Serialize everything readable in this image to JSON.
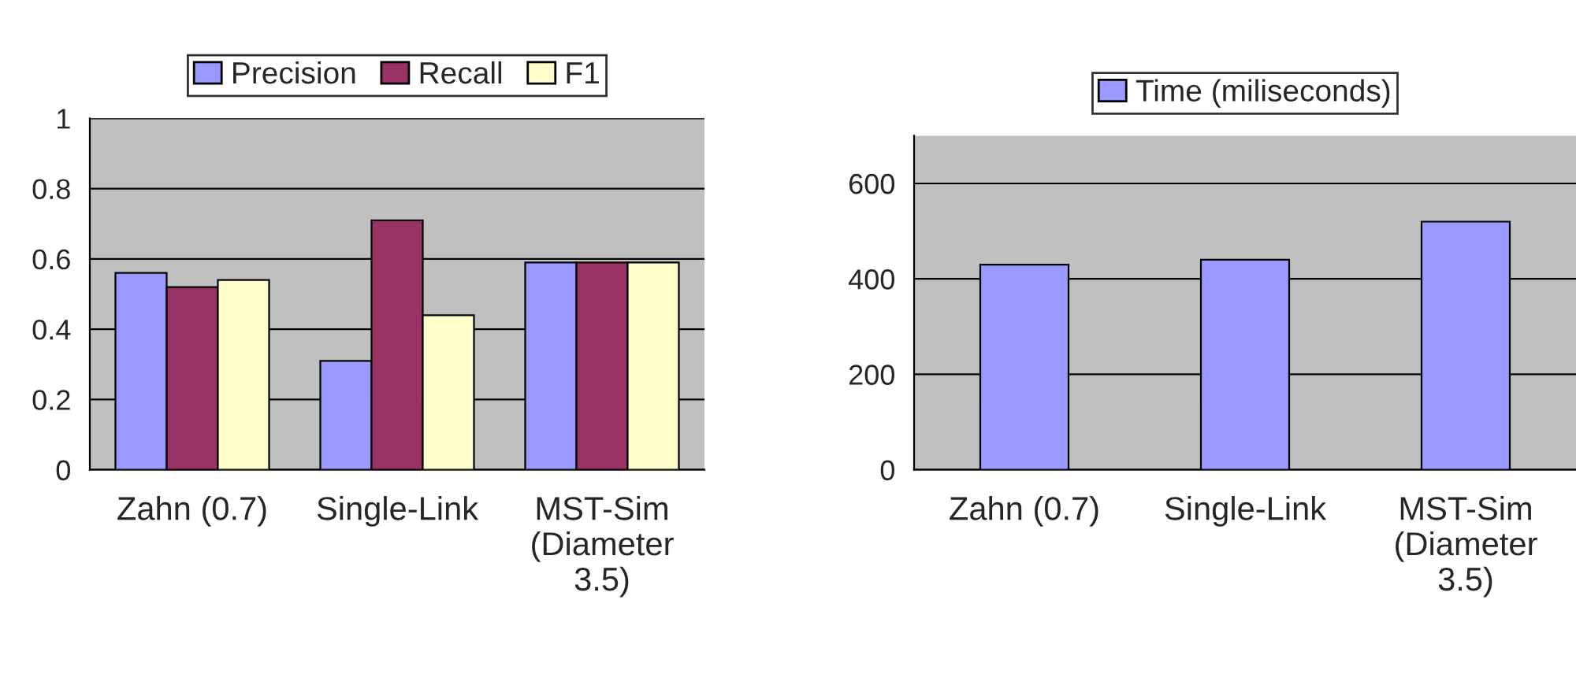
{
  "chart_data": [
    {
      "type": "bar",
      "categories": [
        "Zahn (0.7)",
        "Single-Link",
        "MST-Sim\n(Diameter\n3.5)"
      ],
      "series": [
        {
          "name": "Precision",
          "color": "#9999ff",
          "values": [
            0.56,
            0.31,
            0.59
          ]
        },
        {
          "name": "Recall",
          "color": "#993366",
          "values": [
            0.52,
            0.71,
            0.59
          ]
        },
        {
          "name": "F1",
          "color": "#ffffcc",
          "values": [
            0.54,
            0.44,
            0.59
          ]
        }
      ],
      "ylim": [
        0,
        1
      ],
      "yticks": [
        0,
        0.2,
        0.4,
        0.6,
        0.8,
        1
      ],
      "grid": "y",
      "legend": "top"
    },
    {
      "type": "bar",
      "categories": [
        "Zahn (0.7)",
        "Single-Link",
        "MST-Sim\n(Diameter\n3.5)"
      ],
      "series": [
        {
          "name": "Time (miliseconds)",
          "color": "#9999ff",
          "values": [
            430,
            440,
            520
          ]
        }
      ],
      "ylim": [
        0,
        700
      ],
      "yticks": [
        0,
        200,
        400,
        600
      ],
      "grid": "y",
      "legend": "top"
    }
  ]
}
